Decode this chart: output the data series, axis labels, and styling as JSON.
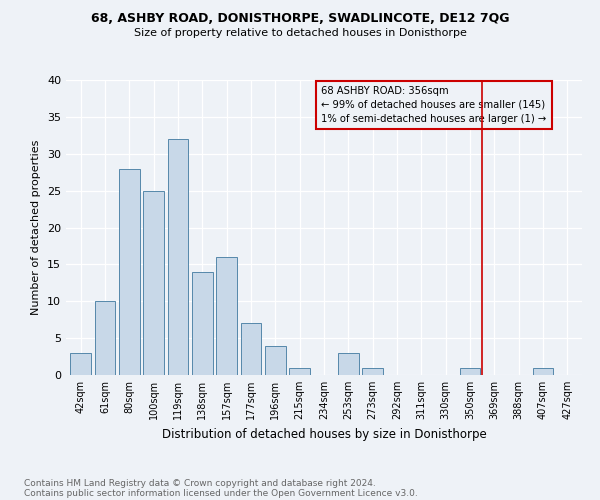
{
  "title1": "68, ASHBY ROAD, DONISTHORPE, SWADLINCOTE, DE12 7QG",
  "title2": "Size of property relative to detached houses in Donisthorpe",
  "xlabel": "Distribution of detached houses by size in Donisthorpe",
  "ylabel": "Number of detached properties",
  "categories": [
    "42sqm",
    "61sqm",
    "80sqm",
    "100sqm",
    "119sqm",
    "138sqm",
    "157sqm",
    "177sqm",
    "196sqm",
    "215sqm",
    "234sqm",
    "253sqm",
    "273sqm",
    "292sqm",
    "311sqm",
    "330sqm",
    "350sqm",
    "369sqm",
    "388sqm",
    "407sqm",
    "427sqm"
  ],
  "values": [
    3,
    10,
    28,
    25,
    32,
    14,
    16,
    7,
    4,
    1,
    0,
    3,
    1,
    0,
    0,
    0,
    1,
    0,
    0,
    1,
    0
  ],
  "bar_color": "#c8d8e8",
  "bar_edge_color": "#5588aa",
  "vline_x": 16.5,
  "vline_color": "#cc0000",
  "annotation_title": "68 ASHBY ROAD: 356sqm",
  "annotation_line1": "← 99% of detached houses are smaller (145)",
  "annotation_line2": "1% of semi-detached houses are larger (1) →",
  "ylim": [
    0,
    40
  ],
  "yticks": [
    0,
    5,
    10,
    15,
    20,
    25,
    30,
    35,
    40
  ],
  "footer1": "Contains HM Land Registry data © Crown copyright and database right 2024.",
  "footer2": "Contains public sector information licensed under the Open Government Licence v3.0.",
  "bg_color": "#eef2f7"
}
